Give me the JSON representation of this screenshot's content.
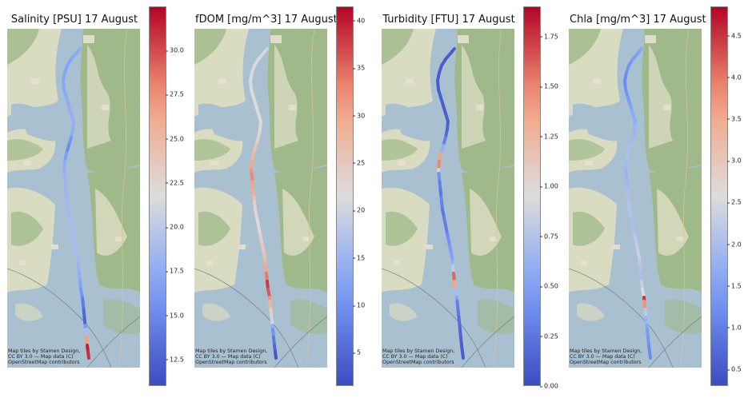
{
  "panels": [
    {
      "title": "Salinity [PSU] 17 August",
      "attribution": "Map tiles by Stamen Design, CC BY 3.0 — Map data (C) OpenStreetMap contributors",
      "scale": {
        "min": 11.0,
        "max": 32.5,
        "ticks": [
          "12.5",
          "15.0",
          "17.5",
          "20.0",
          "22.5",
          "25.0",
          "27.5",
          "30.0"
        ]
      },
      "track_values": [
        17.4,
        17.2,
        17.0,
        16.8,
        16.9,
        17.0,
        17.1,
        17.3,
        17.5,
        17.6,
        17.7,
        17.8,
        17.6,
        17.4,
        15.8,
        15.2,
        16.5,
        17.5,
        17.8,
        18.0,
        18.2,
        18.3,
        18.4,
        18.5,
        18.6,
        18.7,
        18.8,
        18.9,
        18.9,
        18.8,
        18.5,
        18.3,
        18.0,
        17.5,
        16.8,
        16.0,
        14.5,
        14.0,
        13.0,
        12.5,
        16.0,
        19.0,
        27.0,
        31.5,
        31.0,
        30.5
      ]
    },
    {
      "title": "fDOM [mg/m^3] 17 August",
      "attribution": "Map tiles by Stamen Design, CC BY 3.0 — Map data (C) OpenStreetMap contributors",
      "scale": {
        "min": 1.5,
        "max": 41.5,
        "ticks": [
          "5",
          "10",
          "15",
          "20",
          "25",
          "30",
          "35",
          "40"
        ]
      },
      "track_values": [
        20,
        20.5,
        21,
        21,
        20.5,
        21,
        21,
        21.5,
        22,
        22,
        22,
        21.5,
        22,
        23,
        24,
        26,
        28,
        30,
        32,
        33,
        31,
        29,
        26,
        24,
        23,
        22,
        22,
        23,
        24,
        25,
        26,
        28,
        30,
        34,
        38,
        36,
        32,
        28,
        24,
        20,
        14,
        10,
        7,
        5,
        3,
        3
      ]
    },
    {
      "title": "Turbidity [FTU] 17 August",
      "attribution": "Map tiles by Stamen Design, CC BY 3.0 — Map data (C) OpenStreetMap contributors",
      "scale": {
        "min": 0.0,
        "max": 1.9,
        "ticks": [
          "0.00",
          "0.25",
          "0.50",
          "0.75",
          "1.00",
          "1.25",
          "1.50",
          "1.75"
        ]
      },
      "track_values": [
        0.12,
        0.1,
        0.08,
        0.1,
        0.12,
        0.1,
        0.09,
        0.1,
        0.12,
        0.1,
        0.11,
        0.12,
        0.15,
        0.2,
        0.3,
        0.6,
        1.4,
        1.5,
        0.9,
        0.4,
        0.3,
        0.25,
        0.35,
        0.3,
        0.25,
        0.3,
        0.28,
        0.35,
        0.4,
        0.45,
        0.5,
        0.6,
        0.8,
        1.6,
        1.4,
        0.7,
        0.5,
        0.3,
        0.25,
        0.2,
        0.18,
        0.15,
        0.12,
        0.1,
        0.1,
        0.1
      ]
    },
    {
      "title": "Chla [mg/m^3] 17 August",
      "attribution": "Map tiles by Stamen Design, CC BY 3.0 — Map data (C) OpenStreetMap contributors",
      "scale": {
        "min": 0.3,
        "max": 4.85,
        "ticks": [
          "0.5",
          "1.0",
          "1.5",
          "2.0",
          "2.5",
          "3.0",
          "3.5",
          "4.0",
          "4.5"
        ]
      },
      "track_values": [
        1.6,
        1.5,
        1.4,
        1.3,
        1.3,
        1.2,
        1.2,
        1.3,
        1.4,
        1.5,
        1.6,
        1.7,
        1.8,
        1.8,
        1.9,
        2.0,
        2.0,
        1.9,
        1.8,
        1.8,
        1.9,
        2.0,
        2.0,
        2.1,
        2.1,
        2.0,
        2.0,
        2.1,
        2.2,
        2.3,
        2.3,
        2.2,
        2.1,
        2.0,
        2.3,
        2.6,
        4.5,
        3.8,
        2.2,
        1.8,
        1.6,
        1.4,
        1.3,
        1.2,
        1.2,
        1.1
      ]
    }
  ],
  "colors": {
    "water": "#a9c0d1",
    "land_green": "#9fb98a",
    "land_light": "#d9dcc0",
    "urban": "#e6e1cf"
  }
}
